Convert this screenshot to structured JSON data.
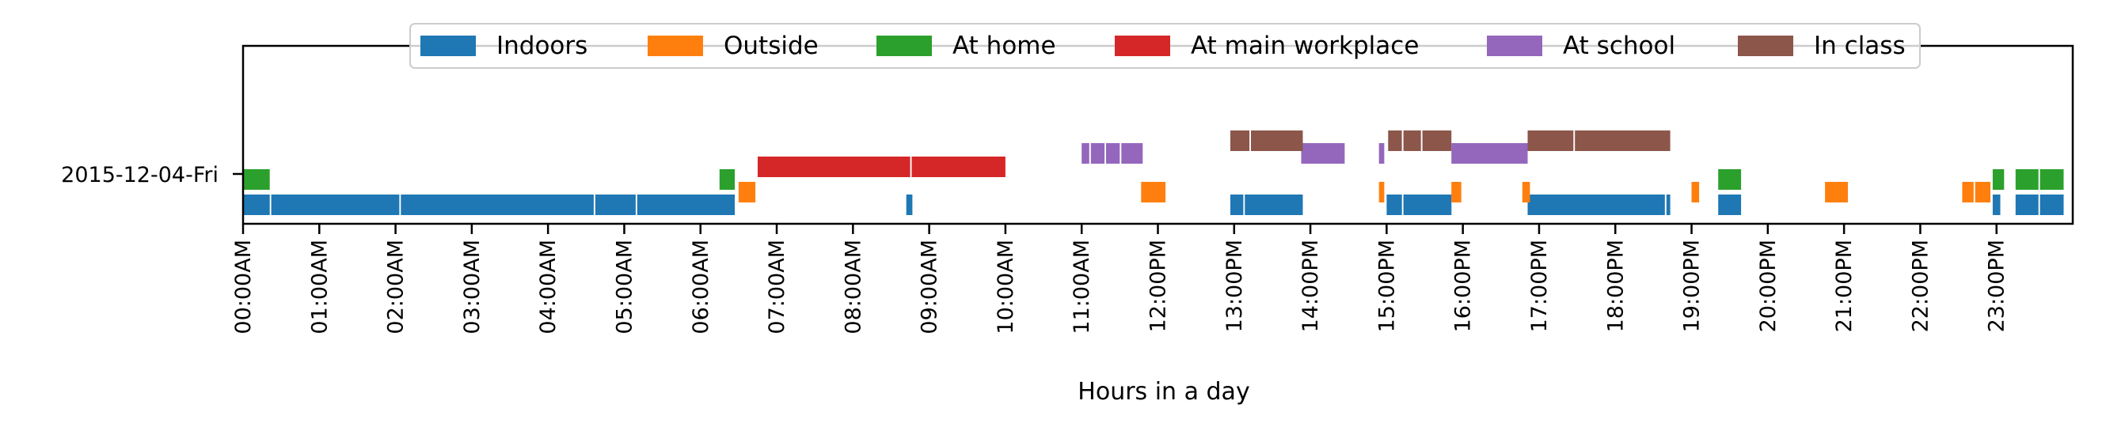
{
  "chart_data": {
    "type": "timeline",
    "xlabel": "Hours in a day",
    "ylabel": "",
    "date_label": "2015-12-04-Fri",
    "xlim": [
      0,
      24
    ],
    "x_tick_labels": [
      "00:00AM",
      "01:00AM",
      "02:00AM",
      "03:00AM",
      "04:00AM",
      "05:00AM",
      "06:00AM",
      "07:00AM",
      "08:00AM",
      "09:00AM",
      "10:00AM",
      "11:00AM",
      "12:00PM",
      "13:00PM",
      "14:00PM",
      "15:00PM",
      "16:00PM",
      "17:00PM",
      "18:00PM",
      "19:00PM",
      "20:00PM",
      "21:00PM",
      "22:00PM",
      "23:00PM"
    ],
    "legend_position": "top-center",
    "grid": false,
    "series": [
      {
        "name": "Indoors",
        "color": "#1f77b4",
        "intervals": [
          [
            0.0,
            0.35
          ],
          [
            0.37,
            2.05
          ],
          [
            2.07,
            4.6
          ],
          [
            4.62,
            5.15
          ],
          [
            5.17,
            6.45
          ],
          [
            8.7,
            8.78
          ],
          [
            12.95,
            13.12
          ],
          [
            13.14,
            13.9
          ],
          [
            15.0,
            15.2
          ],
          [
            15.22,
            15.85
          ],
          [
            16.85,
            18.65
          ],
          [
            18.67,
            18.72
          ],
          [
            19.35,
            19.65
          ],
          [
            22.95,
            23.05
          ],
          [
            23.25,
            23.55
          ],
          [
            23.57,
            23.88
          ]
        ]
      },
      {
        "name": "Outside",
        "color": "#ff7f0e",
        "intervals": [
          [
            6.5,
            6.72
          ],
          [
            11.78,
            12.1
          ],
          [
            14.9,
            14.97
          ],
          [
            15.85,
            15.98
          ],
          [
            16.78,
            16.88
          ],
          [
            19.0,
            19.1
          ],
          [
            20.75,
            21.05
          ],
          [
            22.55,
            22.7
          ],
          [
            22.72,
            22.92
          ]
        ]
      },
      {
        "name": "At home",
        "color": "#2ca02c",
        "intervals": [
          [
            0.0,
            0.35
          ],
          [
            6.25,
            6.45
          ],
          [
            19.35,
            19.65
          ],
          [
            22.95,
            23.1
          ],
          [
            23.25,
            23.55
          ],
          [
            23.57,
            23.88
          ]
        ]
      },
      {
        "name": "At main workplace",
        "color": "#d62728",
        "intervals": [
          [
            6.75,
            8.75
          ],
          [
            8.77,
            10.0
          ]
        ]
      },
      {
        "name": "At school",
        "color": "#9467bd",
        "intervals": [
          [
            11.0,
            11.1
          ],
          [
            11.12,
            11.3
          ],
          [
            11.32,
            11.5
          ],
          [
            11.52,
            11.8
          ],
          [
            13.88,
            14.45
          ],
          [
            14.9,
            14.97
          ],
          [
            15.85,
            16.85
          ]
        ]
      },
      {
        "name": "In class",
        "color": "#8c564b",
        "intervals": [
          [
            12.95,
            13.2
          ],
          [
            13.22,
            13.9
          ],
          [
            15.02,
            15.2
          ],
          [
            15.22,
            15.45
          ],
          [
            15.47,
            15.85
          ],
          [
            16.85,
            17.45
          ],
          [
            17.47,
            18.72
          ]
        ]
      }
    ]
  }
}
